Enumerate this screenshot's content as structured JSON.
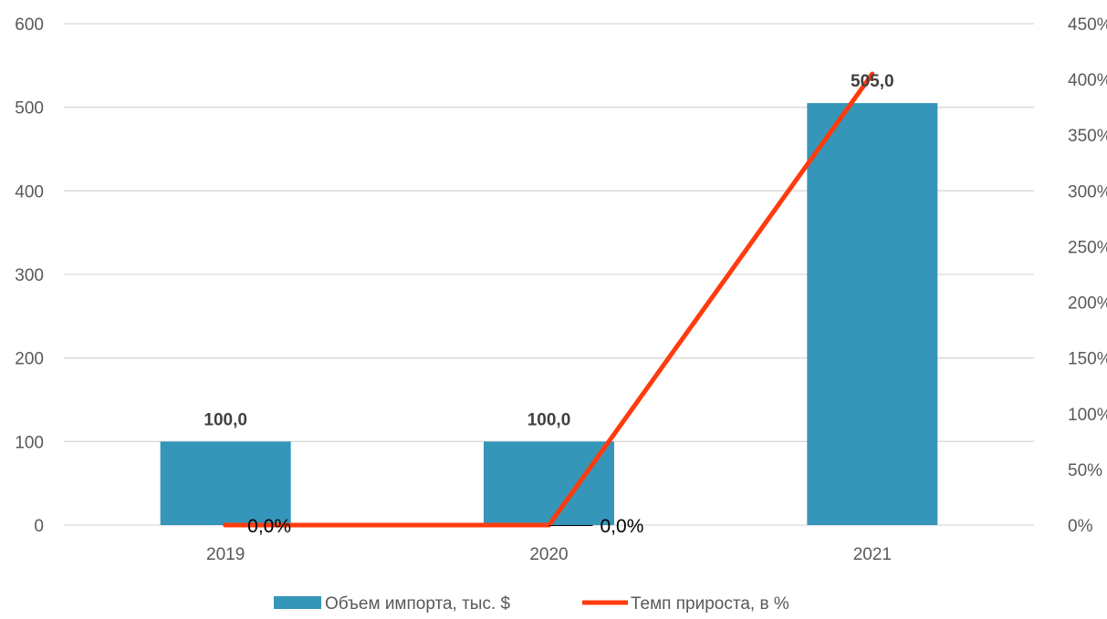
{
  "chart_data": {
    "type": "bar",
    "categories": [
      "2019",
      "2020",
      "2021"
    ],
    "series": [
      {
        "name": "Объем импорта, тыс. $",
        "type": "bar",
        "axis": "left",
        "values": [
          100,
          100,
          505
        ],
        "labels": [
          "100,0",
          "100,0",
          "505,0"
        ],
        "color": "#3596B9"
      },
      {
        "name": "Темп прироста, в %",
        "type": "line",
        "axis": "right",
        "values": [
          0,
          0,
          405
        ],
        "labels": [
          "0,0%",
          "0,0%",
          ""
        ],
        "color": "#FF3B0E"
      }
    ],
    "y_left": {
      "ylim": [
        0,
        600
      ],
      "ticks": [
        "0",
        "100",
        "200",
        "300",
        "400",
        "500",
        "600"
      ]
    },
    "y_right": {
      "ylim": [
        0,
        450
      ],
      "ticks": [
        "0%",
        "50%",
        "100%",
        "150%",
        "200%",
        "250%",
        "300%",
        "350%",
        "400%",
        "450%"
      ]
    },
    "grid": true,
    "legend": "bottom",
    "gridline_color": "#D9D9D9"
  }
}
